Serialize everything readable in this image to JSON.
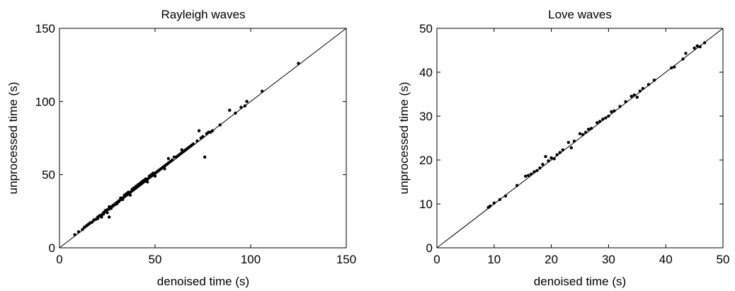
{
  "chart_data": [
    {
      "type": "scatter",
      "title": "Rayleigh waves",
      "xlabel": "denoised time (s)",
      "ylabel": "unprocessed time (s)",
      "xlim": [
        0,
        150
      ],
      "ylim": [
        0,
        150
      ],
      "xticks": [
        "0",
        "50",
        "100",
        "150"
      ],
      "yticks": [
        "0",
        "50",
        "100",
        "150"
      ],
      "grid": false,
      "reference_line": "y = x",
      "colors": {
        "points": "#000000",
        "line": "#000000"
      },
      "points": [
        [
          8,
          9
        ],
        [
          10,
          11
        ],
        [
          12,
          12.5
        ],
        [
          13,
          14
        ],
        [
          14,
          15
        ],
        [
          15,
          16
        ],
        [
          16,
          17
        ],
        [
          17,
          17.5
        ],
        [
          18,
          19
        ],
        [
          19,
          19.5
        ],
        [
          20,
          21
        ],
        [
          20,
          20
        ],
        [
          21,
          22
        ],
        [
          22,
          22.5
        ],
        [
          22,
          21
        ],
        [
          23,
          24
        ],
        [
          23,
          23
        ],
        [
          24,
          25
        ],
        [
          24,
          25.5
        ],
        [
          25,
          26
        ],
        [
          25,
          24
        ],
        [
          26,
          26.5
        ],
        [
          26,
          28
        ],
        [
          26,
          21
        ],
        [
          27,
          28
        ],
        [
          27,
          27
        ],
        [
          28,
          29
        ],
        [
          28,
          28.5
        ],
        [
          29,
          30
        ],
        [
          29,
          29.5
        ],
        [
          30,
          31
        ],
        [
          30,
          30
        ],
        [
          31,
          32
        ],
        [
          31,
          31.5
        ],
        [
          32,
          33
        ],
        [
          32,
          34
        ],
        [
          33,
          34
        ],
        [
          33,
          33
        ],
        [
          34,
          35
        ],
        [
          34,
          36
        ],
        [
          35,
          36
        ],
        [
          35,
          37
        ],
        [
          36,
          37
        ],
        [
          36,
          38
        ],
        [
          37,
          38
        ],
        [
          37,
          36
        ],
        [
          38,
          39
        ],
        [
          38,
          40
        ],
        [
          39,
          40
        ],
        [
          39,
          41
        ],
        [
          40,
          41
        ],
        [
          40,
          42
        ],
        [
          41,
          42
        ],
        [
          41,
          43
        ],
        [
          42,
          43
        ],
        [
          42,
          44
        ],
        [
          43,
          44
        ],
        [
          43,
          45
        ],
        [
          44,
          45
        ],
        [
          44,
          46
        ],
        [
          45,
          46
        ],
        [
          45,
          47
        ],
        [
          46,
          47
        ],
        [
          46,
          45
        ],
        [
          47,
          48
        ],
        [
          47,
          49
        ],
        [
          48,
          49
        ],
        [
          48,
          50
        ],
        [
          49,
          50
        ],
        [
          49,
          51
        ],
        [
          50,
          51
        ],
        [
          50,
          49
        ],
        [
          51,
          52
        ],
        [
          52,
          53
        ],
        [
          53,
          54
        ],
        [
          54,
          55
        ],
        [
          55,
          56
        ],
        [
          55,
          54
        ],
        [
          56,
          57
        ],
        [
          57,
          58
        ],
        [
          57,
          61
        ],
        [
          58,
          59
        ],
        [
          59,
          60
        ],
        [
          60,
          62
        ],
        [
          61,
          62
        ],
        [
          62,
          63
        ],
        [
          63,
          64
        ],
        [
          64,
          65
        ],
        [
          64,
          67
        ],
        [
          65,
          66
        ],
        [
          66,
          67
        ],
        [
          67,
          68
        ],
        [
          68,
          69
        ],
        [
          69,
          70
        ],
        [
          70,
          71
        ],
        [
          72,
          73
        ],
        [
          73,
          80
        ],
        [
          74,
          75
        ],
        [
          75,
          76
        ],
        [
          76,
          62
        ],
        [
          77,
          78
        ],
        [
          78,
          79
        ],
        [
          79,
          79
        ],
        [
          80,
          80
        ],
        [
          84,
          84
        ],
        [
          89,
          94
        ],
        [
          92,
          92
        ],
        [
          95,
          96
        ],
        [
          97,
          97
        ],
        [
          98,
          100
        ],
        [
          106,
          107
        ],
        [
          125,
          126
        ]
      ]
    },
    {
      "type": "scatter",
      "title": "Love waves",
      "xlabel": "denoised time (s)",
      "ylabel": "unprocessed time (s)",
      "xlim": [
        0,
        50
      ],
      "ylim": [
        0,
        50
      ],
      "xticks": [
        "0",
        "10",
        "20",
        "30",
        "40",
        "50"
      ],
      "yticks": [
        "0",
        "10",
        "20",
        "30",
        "40",
        "50"
      ],
      "grid": false,
      "reference_line": "y = x",
      "colors": {
        "points": "#000000",
        "line": "#000000"
      },
      "points": [
        [
          9,
          9.2
        ],
        [
          9.3,
          9.5
        ],
        [
          10,
          10.2
        ],
        [
          11,
          11
        ],
        [
          12,
          11.8
        ],
        [
          14,
          14.2
        ],
        [
          15.5,
          16.3
        ],
        [
          16,
          16.5
        ],
        [
          16.5,
          16.8
        ],
        [
          17,
          17.3
        ],
        [
          17.5,
          17.6
        ],
        [
          18,
          18.2
        ],
        [
          18.5,
          19
        ],
        [
          19,
          20.8
        ],
        [
          19.5,
          19.8
        ],
        [
          20,
          20.5
        ],
        [
          20.5,
          20.3
        ],
        [
          21,
          21.2
        ],
        [
          21.5,
          21.7
        ],
        [
          22,
          22.3
        ],
        [
          23,
          24
        ],
        [
          23.5,
          22.8
        ],
        [
          24,
          24.3
        ],
        [
          25,
          26
        ],
        [
          25.5,
          25.8
        ],
        [
          26,
          26.3
        ],
        [
          26.5,
          27
        ],
        [
          27,
          27.2
        ],
        [
          28,
          28.5
        ],
        [
          28.5,
          28.8
        ],
        [
          29,
          29.3
        ],
        [
          29.5,
          29.6
        ],
        [
          30,
          30
        ],
        [
          30.5,
          31
        ],
        [
          31,
          31.2
        ],
        [
          32,
          32.2
        ],
        [
          33,
          33.3
        ],
        [
          34,
          34.5
        ],
        [
          34.5,
          34.8
        ],
        [
          35,
          34.3
        ],
        [
          35.5,
          35.7
        ],
        [
          36,
          36.3
        ],
        [
          37,
          37.2
        ],
        [
          38,
          38.2
        ],
        [
          41,
          41
        ],
        [
          41.5,
          41.2
        ],
        [
          43,
          43
        ],
        [
          43.5,
          44.3
        ],
        [
          45,
          45.5
        ],
        [
          45.5,
          46
        ],
        [
          46,
          45.8
        ],
        [
          46.8,
          46.7
        ]
      ]
    }
  ]
}
